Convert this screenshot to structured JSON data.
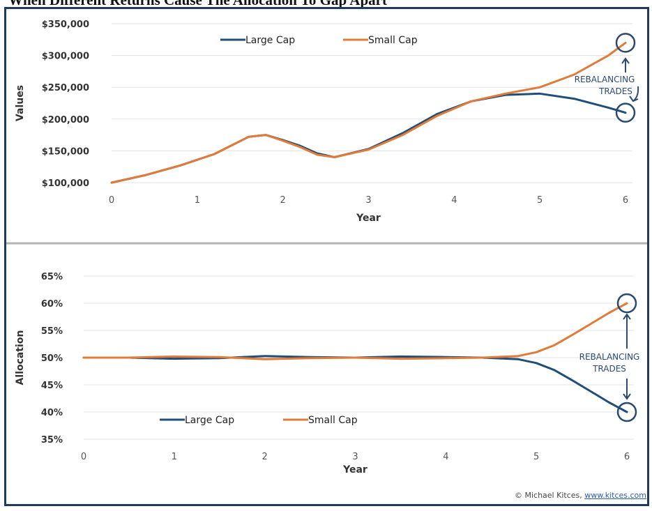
{
  "page": {
    "title": "When Different Returns Cause The Allocation To Gap Apart"
  },
  "credit": {
    "text": "© Michael Kitces,",
    "link": "www.kitces.com"
  },
  "colors": {
    "large_cap": "#1f4e79",
    "small_cap": "#e07b39",
    "annotation": "#2b4a6f",
    "frame": "#1f3a5a",
    "divider": "#b3b3b3"
  },
  "chart_data": [
    {
      "type": "line",
      "xlabel": "Year",
      "ylabel": "Values",
      "xlim": [
        0,
        6
      ],
      "ylim": [
        100000,
        350000
      ],
      "x_ticks": [
        "0",
        "1",
        "2",
        "3",
        "4",
        "5",
        "6"
      ],
      "y_ticks": [
        "$100,000",
        "$150,000",
        "$200,000",
        "$250,000",
        "$300,000",
        "$350,000"
      ],
      "grid": true,
      "legend_position": "top-center",
      "legend": [
        "Large Cap",
        "Small Cap"
      ],
      "x": [
        0,
        0.4,
        0.8,
        1.2,
        1.6,
        1.8,
        2.0,
        2.2,
        2.4,
        2.6,
        3.0,
        3.4,
        3.8,
        4.2,
        4.6,
        5.0,
        5.4,
        5.8,
        6.0
      ],
      "series": [
        {
          "name": "Large Cap",
          "values": [
            100000,
            112000,
            127000,
            145000,
            172000,
            175000,
            167000,
            158000,
            146000,
            140000,
            153000,
            178000,
            208000,
            228000,
            238000,
            240000,
            232000,
            218000,
            210000
          ]
        },
        {
          "name": "Small Cap",
          "values": [
            100000,
            112000,
            127000,
            145000,
            172000,
            175000,
            166000,
            156000,
            144000,
            140000,
            152000,
            175000,
            205000,
            228000,
            240000,
            250000,
            270000,
            300000,
            320000
          ]
        }
      ],
      "annotation": {
        "lines": [
          "REBALANCING",
          "TRADES"
        ]
      }
    },
    {
      "type": "line",
      "xlabel": "Year",
      "ylabel": "Allocation",
      "xlim": [
        0,
        6
      ],
      "ylim": [
        35,
        65
      ],
      "x_ticks": [
        "0",
        "1",
        "2",
        "3",
        "4",
        "5",
        "6"
      ],
      "y_ticks": [
        "35%",
        "40%",
        "45%",
        "50%",
        "55%",
        "60%",
        "65%"
      ],
      "grid": true,
      "legend_position": "bottom-left",
      "legend": [
        "Large Cap",
        "Small Cap"
      ],
      "x": [
        0,
        0.5,
        1.0,
        1.5,
        2.0,
        2.5,
        3.0,
        3.5,
        4.0,
        4.4,
        4.8,
        5.0,
        5.2,
        5.4,
        5.6,
        5.8,
        6.0
      ],
      "series": [
        {
          "name": "Large Cap",
          "values": [
            50,
            50,
            49.8,
            49.9,
            50.3,
            50.1,
            50,
            50.2,
            50.1,
            50,
            49.7,
            49,
            47.7,
            45.8,
            43.8,
            41.8,
            40
          ]
        },
        {
          "name": "Small Cap",
          "values": [
            50,
            50,
            50.2,
            50.1,
            49.7,
            49.9,
            50,
            49.8,
            49.9,
            50,
            50.3,
            51,
            52.3,
            54.2,
            56.2,
            58.2,
            60
          ]
        }
      ],
      "annotation": {
        "lines": [
          "REBALANCING",
          "TRADES"
        ]
      }
    }
  ]
}
